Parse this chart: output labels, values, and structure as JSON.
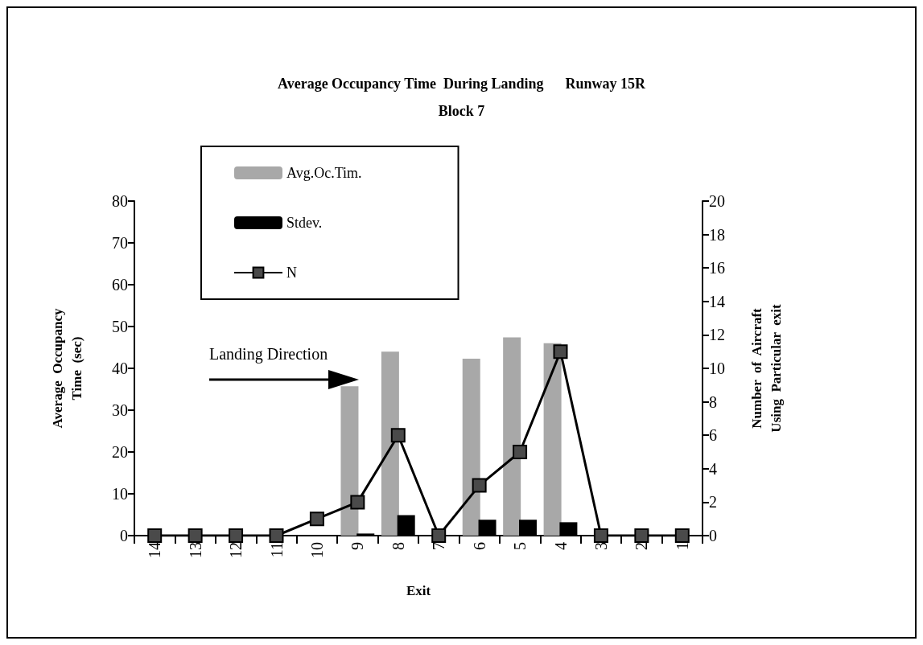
{
  "chart_data": {
    "type": "bar",
    "title": "Average Occupancy Time  During Landing      Runway 15R",
    "subtitle": "Block 7",
    "xlabel": "Exit",
    "ylabel": "Average  Occupancy\nTime  (sec)",
    "y2label": "Number  of  Aircraft\nUsing  Particular  exit",
    "categories": [
      "14",
      "13",
      "12",
      "11",
      "10",
      "9",
      "8",
      "7",
      "6",
      "5",
      "4",
      "3",
      "2",
      "1"
    ],
    "series": [
      {
        "name": "Avg.Oc.Tim.",
        "color": "#a8a8a8",
        "values": [
          0,
          0,
          0,
          0,
          0,
          35.7,
          44,
          0,
          42.3,
          47.4,
          46,
          0,
          0,
          0
        ]
      },
      {
        "name": "Stdev.",
        "color": "#000000",
        "values": [
          0,
          0,
          0,
          0,
          0,
          0.5,
          4.9,
          0,
          3.8,
          3.8,
          3.2,
          0,
          0,
          0
        ]
      },
      {
        "name": "N",
        "type": "line",
        "axis": "y2",
        "color": "#000000",
        "values": [
          0,
          0,
          0,
          0,
          1,
          2,
          6,
          0,
          3,
          5,
          11,
          0,
          0,
          0
        ]
      }
    ],
    "ylim": [
      0,
      80
    ],
    "yticks": [
      0,
      10,
      20,
      30,
      40,
      50,
      60,
      70,
      80
    ],
    "y2lim": [
      0,
      20
    ],
    "y2ticks": [
      0,
      2,
      4,
      6,
      8,
      10,
      12,
      14,
      16,
      18,
      20
    ],
    "annotations": [
      "Landing Direction"
    ],
    "legend": "top left",
    "grid": false,
    "marker": "square",
    "line_style": "solid"
  }
}
